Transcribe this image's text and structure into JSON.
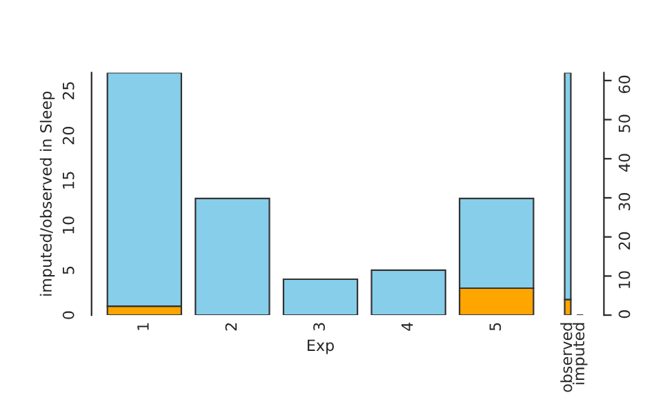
{
  "chart_data": [
    {
      "type": "bar",
      "stacked": true,
      "xlabel": "Exp",
      "ylabel": "imputed/observed in Sleep",
      "categories": [
        "1",
        "2",
        "3",
        "4",
        "5"
      ],
      "ylim": [
        0,
        27
      ],
      "yticks": [
        0,
        5,
        10,
        15,
        20,
        25
      ],
      "grid": false,
      "legend": false,
      "series": [
        {
          "color": "#ffa500",
          "values": [
            1,
            0,
            0,
            0,
            3
          ]
        },
        {
          "color": "#87ceeb",
          "values": [
            26,
            13,
            4,
            5,
            10
          ]
        }
      ]
    },
    {
      "type": "bar",
      "stacked": true,
      "categories": [
        "observed",
        "imputed"
      ],
      "ylim": [
        0,
        62
      ],
      "yticks": [
        0,
        10,
        20,
        30,
        40,
        50,
        60
      ],
      "grid": false,
      "legend": false,
      "series": [
        {
          "color": "#ffa500",
          "values": [
            4,
            0
          ]
        },
        {
          "color": "#87ceeb",
          "values": [
            58,
            0
          ]
        }
      ]
    }
  ]
}
